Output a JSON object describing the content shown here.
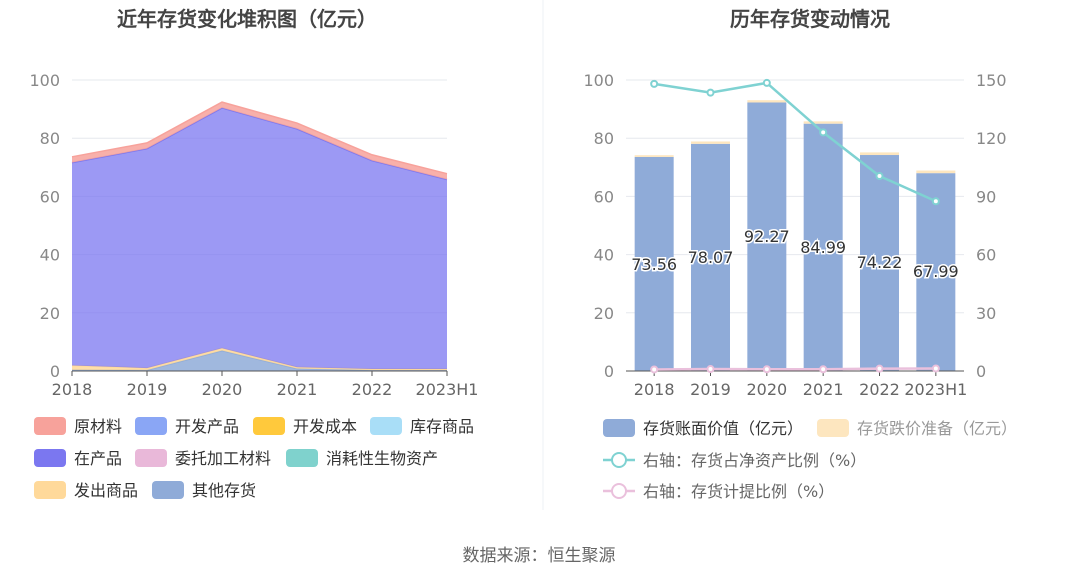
{
  "source_text": "数据来源：恒生聚源",
  "colors": {
    "raw_material": "#f7a29b",
    "finished_products": "#8aa6f5",
    "dev_cost": "#ffc93c",
    "stock_goods": "#a9def7",
    "wip": "#7b77f0",
    "consigned": "#e9b8d9",
    "bio_assets": "#7fd2cd",
    "goods_shipped": "#ffd99a",
    "other": "#8fabd8",
    "book_value": "#8fabd8",
    "impairment": "#fde6bf",
    "net_ratio_line": "#7fd2d2",
    "provision_ratio_line": "#eac0dc"
  },
  "chart_data": [
    {
      "type": "area",
      "stacked": true,
      "title": "近年存货变化堆积图（亿元）",
      "categories": [
        "2018",
        "2019",
        "2020",
        "2021",
        "2022",
        "2023H1"
      ],
      "ylim": [
        0,
        100
      ],
      "yticks": [
        0,
        20,
        40,
        60,
        80,
        100
      ],
      "series": [
        {
          "name": "原材料",
          "values": [
            2,
            2,
            2,
            2,
            2,
            2
          ]
        },
        {
          "name": "开发产品",
          "values": [
            0,
            0,
            0,
            0,
            0,
            0
          ]
        },
        {
          "name": "开发成本",
          "values": [
            0,
            0,
            0,
            0,
            0,
            0
          ]
        },
        {
          "name": "库存商品",
          "values": [
            0,
            0,
            0,
            0,
            0,
            0
          ]
        },
        {
          "name": "在产品",
          "values": [
            69.7,
            75.4,
            82.6,
            81.9,
            71.6,
            65.1
          ]
        },
        {
          "name": "委托加工材料",
          "values": [
            0,
            0,
            0,
            0,
            0,
            0
          ]
        },
        {
          "name": "消耗性生物资产",
          "values": [
            0,
            0,
            0,
            0,
            0,
            0
          ]
        },
        {
          "name": "发出商品",
          "values": [
            1.5,
            0.7,
            0.8,
            0.5,
            0.4,
            0.4
          ]
        },
        {
          "name": "其他存货",
          "values": [
            0.4,
            0.3,
            7.0,
            0.8,
            0.3,
            0.3
          ]
        }
      ],
      "legend": [
        "原材料",
        "开发产品",
        "开发成本",
        "库存商品",
        "在产品",
        "委托加工材料",
        "消耗性生物资产",
        "发出商品",
        "其他存货"
      ]
    },
    {
      "type": "bar",
      "stacked": true,
      "title": "历年存货变动情况",
      "categories": [
        "2018",
        "2019",
        "2020",
        "2021",
        "2022",
        "2023H1"
      ],
      "ylim": [
        0,
        100
      ],
      "yticks": [
        0,
        20,
        40,
        60,
        80,
        100
      ],
      "y2lim": [
        0,
        150
      ],
      "y2ticks": [
        0,
        30,
        60,
        90,
        120,
        150
      ],
      "series": [
        {
          "name": "存货账面价值（亿元）",
          "values": [
            73.56,
            78.07,
            92.27,
            84.99,
            74.22,
            67.99
          ]
        },
        {
          "name": "存货跌价准备（亿元）",
          "values": [
            0.6,
            0.8,
            0.8,
            0.8,
            0.9,
            0.9
          ]
        }
      ],
      "labels": [
        "73.56",
        "78.07",
        "92.27",
        "84.99",
        "74.22",
        "67.99"
      ],
      "lines": [
        {
          "name": "右轴：存货占净资产比例（%）",
          "axis": "right",
          "values": [
            148,
            143.5,
            148.5,
            123,
            100.5,
            87.5
          ]
        },
        {
          "name": "右轴：存货计提比例（%）",
          "axis": "right",
          "values": [
            0.8,
            1.0,
            0.9,
            0.9,
            1.2,
            1.3
          ]
        }
      ],
      "legend": [
        "存货账面价值（亿元）",
        "存货跌价准备（亿元）",
        "右轴：存货占净资产比例（%）",
        "右轴：存货计提比例（%）"
      ]
    }
  ]
}
